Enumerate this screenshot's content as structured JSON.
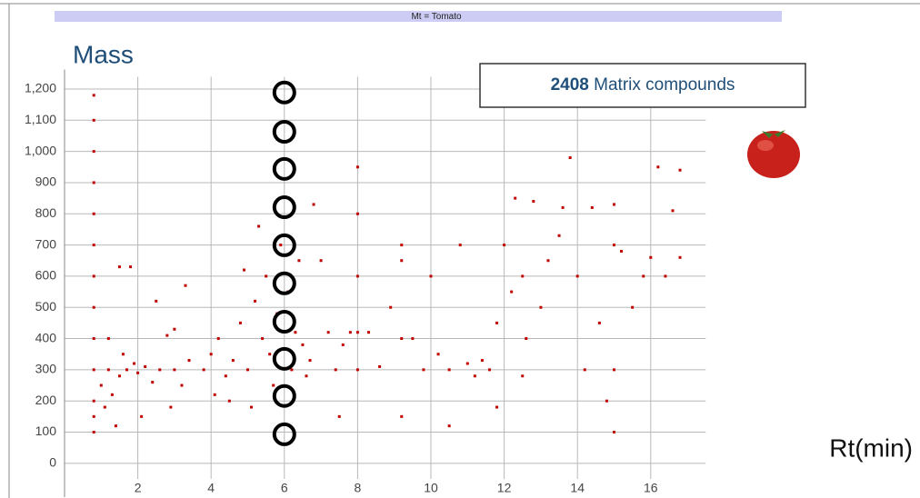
{
  "chart_data": {
    "type": "scatter",
    "banner": "Mt = Tomato",
    "ylabel": "Mass",
    "xlabel": "Rt(min)",
    "box": {
      "count": "2408",
      "label": "Matrix compounds"
    },
    "color": "#c00000",
    "grid": true,
    "xlim": [
      0,
      17.5
    ],
    "ylim": [
      -50,
      1350
    ],
    "xticks": [
      2,
      4,
      6,
      8,
      10,
      12,
      14,
      16
    ],
    "yticks": [
      0,
      100,
      200,
      300,
      400,
      500,
      600,
      700,
      800,
      900,
      {
        "value": 1000,
        "label": "1,000"
      },
      {
        "value": 1100,
        "label": "1,100"
      },
      {
        "value": 1200,
        "label": "1,200"
      }
    ],
    "x": [
      0.8,
      0.8,
      0.8,
      0.8,
      0.8,
      0.8,
      0.8,
      0.8,
      0.8,
      0.8,
      0.8,
      0.8,
      0.8,
      1.0,
      1.1,
      1.2,
      1.3,
      1.4,
      1.5,
      1.6,
      1.7,
      1.9,
      2.0,
      2.2,
      2.4,
      2.6,
      2.8,
      3.0,
      3.2,
      3.4,
      1.5,
      1.8,
      2.5,
      3.3,
      2.1,
      2.9,
      1.2,
      3.8,
      4.0,
      4.2,
      4.4,
      4.6,
      4.8,
      5.0,
      5.2,
      5.4,
      5.5,
      5.6,
      5.7,
      5.8,
      5.9,
      6.1,
      6.2,
      6.3,
      6.4,
      6.5,
      5.3,
      4.9,
      4.5,
      5.1,
      6.6,
      6.8,
      7.0,
      7.2,
      7.4,
      7.6,
      7.8,
      8.0,
      8.0,
      8.0,
      8.0,
      8.0,
      8.3,
      8.6,
      8.9,
      9.2,
      9.2,
      9.2,
      9.2,
      9.5,
      9.8,
      10.0,
      10.2,
      10.5,
      10.8,
      11.0,
      11.2,
      11.4,
      11.6,
      11.8,
      12.0,
      12.2,
      12.3,
      12.5,
      12.6,
      12.8,
      13.0,
      13.2,
      13.5,
      13.6,
      13.8,
      14.0,
      14.2,
      14.4,
      14.6,
      14.8,
      15.0,
      15.0,
      15.0,
      15.0,
      15.2,
      15.5,
      15.8,
      16.0,
      16.2,
      16.4,
      16.6,
      16.8,
      16.8,
      7.5,
      10.5,
      11.8,
      12.5,
      3.0,
      6.7,
      4.1
    ],
    "y": [
      1180,
      1100,
      1000,
      900,
      800,
      700,
      600,
      500,
      400,
      300,
      200,
      150,
      100,
      250,
      180,
      300,
      220,
      120,
      280,
      350,
      300,
      320,
      290,
      310,
      260,
      300,
      410,
      300,
      250,
      330,
      630,
      630,
      520,
      570,
      150,
      180,
      400,
      300,
      350,
      400,
      280,
      330,
      450,
      300,
      520,
      400,
      600,
      350,
      250,
      480,
      700,
      550,
      300,
      420,
      650,
      380,
      760,
      620,
      200,
      180,
      280,
      830,
      650,
      420,
      300,
      380,
      420,
      950,
      800,
      600,
      420,
      300,
      420,
      310,
      500,
      700,
      650,
      400,
      150,
      400,
      300,
      600,
      350,
      300,
      700,
      320,
      280,
      330,
      300,
      450,
      700,
      550,
      850,
      600,
      400,
      840,
      500,
      650,
      730,
      820,
      980,
      600,
      300,
      820,
      450,
      200,
      830,
      700,
      300,
      100,
      680,
      500,
      600,
      660,
      950,
      600,
      810,
      940,
      660,
      150,
      120,
      180,
      280,
      430,
      330,
      220
    ],
    "annotation_circles": {
      "x": 6,
      "values": [
        1189,
        1063,
        944,
        821,
        699,
        577,
        454,
        335,
        216,
        93
      ]
    }
  }
}
